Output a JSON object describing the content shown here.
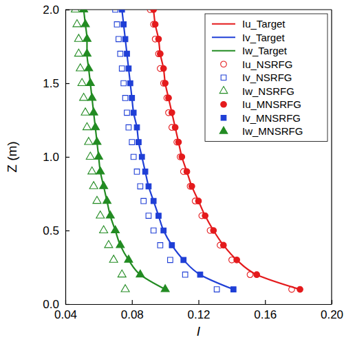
{
  "chart_data": {
    "type": "scatter",
    "x_label": "I",
    "y_label": "Z (m)",
    "xlim": [
      0.04,
      0.2
    ],
    "xticks": [
      0.04,
      0.08,
      0.12,
      0.16,
      {
        "value": 0.2,
        "label": "0.20"
      }
    ],
    "ylim": [
      0,
      2
    ],
    "yticks": [
      {
        "value": 0,
        "label": "0.0"
      },
      0.5,
      {
        "value": 1,
        "label": "1.0"
      },
      1.5,
      {
        "value": 2,
        "label": "2.0"
      }
    ],
    "grid": false,
    "legend": "upper right",
    "series": [
      {
        "name": "Iu_Target",
        "type": "line",
        "line_style": "solid",
        "color": "#e41a1c",
        "x": [
          0.181,
          0.155,
          0.143,
          0.135,
          0.129,
          0.124,
          0.12,
          0.116,
          0.113,
          0.11,
          0.108,
          0.106,
          0.104,
          0.102,
          0.1,
          0.099,
          0.097,
          0.096,
          0.094,
          0.093
        ],
        "y": [
          0.1,
          0.2,
          0.3,
          0.4,
          0.5,
          0.6,
          0.7,
          0.8,
          0.9,
          1.0,
          1.1,
          1.2,
          1.3,
          1.4,
          1.5,
          1.6,
          1.7,
          1.8,
          1.9,
          2.0
        ]
      },
      {
        "name": "Iv_Target",
        "type": "line",
        "line_style": "solid",
        "color": "#1f3fd6",
        "x": [
          0.141,
          0.121,
          0.111,
          0.104,
          0.099,
          0.096,
          0.093,
          0.09,
          0.088,
          0.086,
          0.084,
          0.083,
          0.081,
          0.08,
          0.079,
          0.078,
          0.077,
          0.076,
          0.075,
          0.074
        ],
        "y": [
          0.1,
          0.2,
          0.3,
          0.4,
          0.5,
          0.6,
          0.7,
          0.8,
          0.9,
          1.0,
          1.1,
          1.2,
          1.3,
          1.4,
          1.5,
          1.6,
          1.7,
          1.8,
          1.9,
          2.0
        ]
      },
      {
        "name": "Iw_Target",
        "type": "line",
        "line_style": "solid",
        "color": "#228b22",
        "x": [
          0.1,
          0.085,
          0.078,
          0.073,
          0.07,
          0.067,
          0.065,
          0.063,
          0.061,
          0.06,
          0.059,
          0.058,
          0.057,
          0.056,
          0.055,
          0.054,
          0.053,
          0.053,
          0.052,
          0.051
        ],
        "y": [
          0.1,
          0.2,
          0.3,
          0.4,
          0.5,
          0.6,
          0.7,
          0.8,
          0.9,
          1.0,
          1.1,
          1.2,
          1.3,
          1.4,
          1.5,
          1.6,
          1.7,
          1.8,
          1.9,
          2.0
        ]
      },
      {
        "name": "Iu_NSRFG",
        "type": "scatter",
        "marker": "circle-open",
        "color": "#e41a1c",
        "x": [
          0.176,
          0.151,
          0.14,
          0.133,
          0.127,
          0.122,
          0.118,
          0.115,
          0.111,
          0.109,
          0.107,
          0.104,
          0.102,
          0.101,
          0.099,
          0.097,
          0.096,
          0.094,
          0.093,
          0.091
        ],
        "y": [
          0.1,
          0.2,
          0.3,
          0.4,
          0.5,
          0.6,
          0.7,
          0.8,
          0.9,
          1.0,
          1.1,
          1.2,
          1.3,
          1.4,
          1.5,
          1.6,
          1.7,
          1.8,
          1.9,
          2.0
        ]
      },
      {
        "name": "Iv_NSRFG",
        "type": "scatter",
        "marker": "square-open",
        "color": "#1f3fd6",
        "x": [
          0.131,
          0.112,
          0.103,
          0.097,
          0.093,
          0.09,
          0.087,
          0.085,
          0.083,
          0.081,
          0.08,
          0.078,
          0.077,
          0.076,
          0.075,
          0.074,
          0.073,
          0.072,
          0.071,
          0.07
        ],
        "y": [
          0.1,
          0.2,
          0.3,
          0.4,
          0.5,
          0.6,
          0.7,
          0.8,
          0.9,
          1.0,
          1.1,
          1.2,
          1.3,
          1.4,
          1.5,
          1.6,
          1.7,
          1.8,
          1.9,
          2.0
        ]
      },
      {
        "name": "Iw_NSRFG",
        "type": "scatter",
        "marker": "triangle-open",
        "color": "#228b22",
        "x": [
          0.076,
          0.074,
          0.069,
          0.066,
          0.063,
          0.061,
          0.059,
          0.057,
          0.056,
          0.055,
          0.054,
          0.053,
          0.052,
          0.051,
          0.05,
          0.049,
          0.048,
          0.048,
          0.047,
          0.046
        ],
        "y": [
          0.1,
          0.2,
          0.3,
          0.4,
          0.5,
          0.6,
          0.7,
          0.8,
          0.9,
          1.0,
          1.1,
          1.2,
          1.3,
          1.4,
          1.5,
          1.6,
          1.7,
          1.8,
          1.9,
          2.0
        ]
      },
      {
        "name": "Iu_MNSRFG",
        "type": "scatter",
        "marker": "circle",
        "color": "#e41a1c",
        "x": [
          0.181,
          0.155,
          0.143,
          0.135,
          0.129,
          0.124,
          0.12,
          0.116,
          0.113,
          0.11,
          0.108,
          0.106,
          0.104,
          0.102,
          0.1,
          0.099,
          0.097,
          0.096,
          0.094,
          0.093
        ],
        "y": [
          0.1,
          0.2,
          0.3,
          0.4,
          0.5,
          0.6,
          0.7,
          0.8,
          0.9,
          1.0,
          1.1,
          1.2,
          1.3,
          1.4,
          1.5,
          1.6,
          1.7,
          1.8,
          1.9,
          2.0
        ]
      },
      {
        "name": "Iv_MNSRFG",
        "type": "scatter",
        "marker": "square",
        "color": "#1f3fd6",
        "x": [
          0.141,
          0.121,
          0.111,
          0.104,
          0.099,
          0.096,
          0.093,
          0.09,
          0.088,
          0.086,
          0.084,
          0.083,
          0.081,
          0.08,
          0.079,
          0.078,
          0.077,
          0.076,
          0.075,
          0.074
        ],
        "y": [
          0.1,
          0.2,
          0.3,
          0.4,
          0.5,
          0.6,
          0.7,
          0.8,
          0.9,
          1.0,
          1.1,
          1.2,
          1.3,
          1.4,
          1.5,
          1.6,
          1.7,
          1.8,
          1.9,
          2.0
        ]
      },
      {
        "name": "Iw_MNSRFG",
        "type": "scatter",
        "marker": "triangle",
        "color": "#228b22",
        "x": [
          0.1,
          0.085,
          0.078,
          0.073,
          0.07,
          0.067,
          0.065,
          0.063,
          0.061,
          0.06,
          0.059,
          0.058,
          0.057,
          0.056,
          0.055,
          0.054,
          0.053,
          0.053,
          0.052,
          0.051
        ],
        "y": [
          0.1,
          0.2,
          0.3,
          0.4,
          0.5,
          0.6,
          0.7,
          0.8,
          0.9,
          1.0,
          1.1,
          1.2,
          1.3,
          1.4,
          1.5,
          1.6,
          1.7,
          1.8,
          1.9,
          2.0
        ]
      }
    ]
  }
}
